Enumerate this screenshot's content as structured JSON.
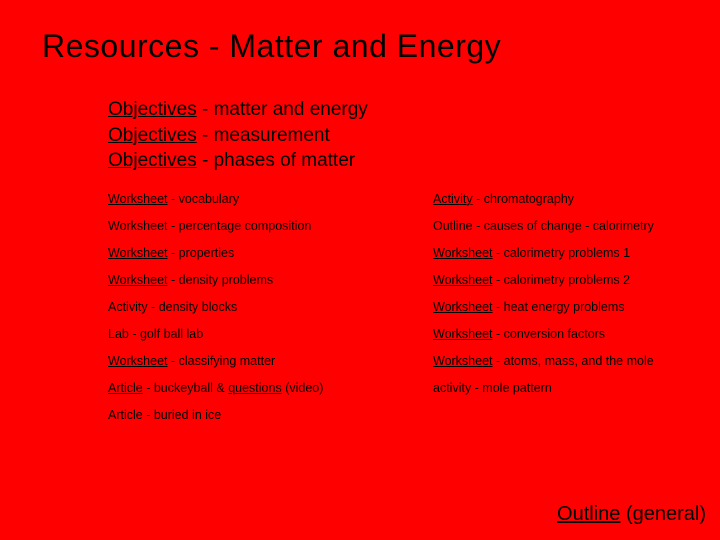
{
  "title": "Resources - Matter and Energy",
  "objectives": [
    {
      "link": "Objectives",
      "rest": " - matter and energy"
    },
    {
      "link": "Objectives",
      "rest": " - measurement"
    },
    {
      "link": "Objectives",
      "rest": " - phases of matter"
    }
  ],
  "left": [
    {
      "link": "Worksheet",
      "rest": " - vocabulary"
    },
    {
      "link": "",
      "rest": "Worksheet - percentage composition"
    },
    {
      "link": "Worksheet",
      "rest": " - properties"
    },
    {
      "link": "Worksheet",
      "rest": " - density problems"
    },
    {
      "link": "",
      "rest": "Activity - density blocks"
    },
    {
      "link": "",
      "rest": "Lab - golf ball lab"
    },
    {
      "link": "Worksheet",
      "rest": " - classifying matter"
    },
    {
      "link": "Article",
      "rest": " - buckeyball & ",
      "link2": "questions",
      "rest2": " (video)"
    },
    {
      "link": "",
      "rest": "Article - buried in ice"
    }
  ],
  "right": [
    {
      "link": "Activity",
      "rest": " - chromatography"
    },
    {
      "link": "",
      "rest": "Outline - causes of change - calorimetry"
    },
    {
      "link": "Worksheet",
      "rest": " - calorimetry problems 1"
    },
    {
      "link": "Worksheet",
      "rest": " - calorimetry problems 2"
    },
    {
      "link": "Worksheet",
      "rest": " - heat energy problems"
    },
    {
      "link": "Worksheet",
      "rest": " - conversion factors"
    },
    {
      "link": "Worksheet",
      "rest": " - atoms, mass, and the mole"
    },
    {
      "link": "",
      "rest": "activity - mole pattern"
    },
    {
      "link": "",
      "rest": ""
    }
  ],
  "footer": {
    "link": "Outline",
    "rest": " (general)"
  },
  "colors": {
    "background": "#ff0000",
    "text": "#000000"
  }
}
